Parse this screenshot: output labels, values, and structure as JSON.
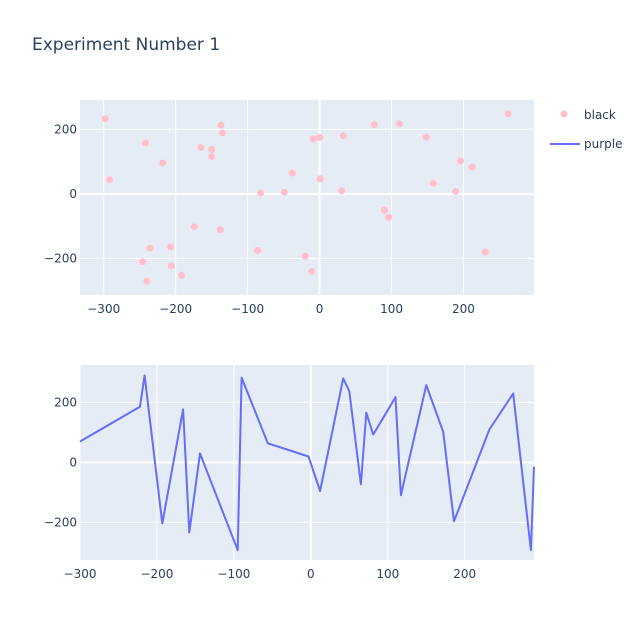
{
  "chart_data": {
    "title": "Experiment Number 1",
    "legend": {
      "placement": "top-right",
      "entries": [
        {
          "name": "black",
          "symbol": "marker",
          "color": "#ffc0cb"
        },
        {
          "name": "purple",
          "symbol": "line",
          "color": "#636efa"
        }
      ]
    },
    "colors": {
      "plot_bg": "#e5ecf6",
      "grid": "#ffffff",
      "text": "#2a3f5f"
    },
    "charts": [
      {
        "type": "scatter",
        "series_name": "black",
        "color": "#ffc0cb",
        "xlim": [
          -333,
          298
        ],
        "ylim": [
          -313,
          291
        ],
        "xticks": [
          -300,
          -200,
          -100,
          0,
          100,
          200
        ],
        "yticks": [
          -200,
          0,
          200
        ],
        "points": [
          [
            -298,
            233
          ],
          [
            -292,
            44
          ],
          [
            -242,
            158
          ],
          [
            -218,
            96
          ],
          [
            -240,
            -270
          ],
          [
            -246,
            -210
          ],
          [
            -236,
            -168
          ],
          [
            -207,
            -164
          ],
          [
            -206,
            -223
          ],
          [
            -192,
            -252
          ],
          [
            -174,
            -102
          ],
          [
            -165,
            144
          ],
          [
            -150,
            138
          ],
          [
            -150,
            116
          ],
          [
            -137,
            213
          ],
          [
            -135,
            189
          ],
          [
            -138,
            -111
          ],
          [
            -86,
            -175
          ],
          [
            -82,
            3
          ],
          [
            -49,
            5
          ],
          [
            -38,
            65
          ],
          [
            -20,
            -193
          ],
          [
            -11,
            -240
          ],
          [
            -9,
            171
          ],
          [
            0,
            175
          ],
          [
            1,
            47
          ],
          [
            31,
            10
          ],
          [
            33,
            180
          ],
          [
            76,
            215
          ],
          [
            90,
            -50
          ],
          [
            96,
            -72
          ],
          [
            111,
            217
          ],
          [
            148,
            176
          ],
          [
            158,
            33
          ],
          [
            189,
            8
          ],
          [
            196,
            102
          ],
          [
            212,
            83
          ],
          [
            230,
            -180
          ],
          [
            262,
            248
          ]
        ]
      },
      {
        "type": "line",
        "series_name": "purple",
        "color": "#636efa",
        "xlim": [
          -300,
          290
        ],
        "ylim": [
          -325,
          325
        ],
        "xticks": [
          -300,
          -200,
          -100,
          0,
          100,
          200
        ],
        "yticks": [
          -200,
          0,
          200
        ],
        "points": [
          [
            -300,
            70
          ],
          [
            -222,
            186
          ],
          [
            -216,
            290
          ],
          [
            -193,
            -203
          ],
          [
            -166,
            177
          ],
          [
            -158,
            -233
          ],
          [
            -144,
            30
          ],
          [
            -95,
            -292
          ],
          [
            -90,
            283
          ],
          [
            -56,
            64
          ],
          [
            -3,
            20
          ],
          [
            12,
            -95
          ],
          [
            42,
            280
          ],
          [
            50,
            238
          ],
          [
            65,
            -73
          ],
          [
            72,
            166
          ],
          [
            81,
            93
          ],
          [
            110,
            218
          ],
          [
            117,
            -109
          ],
          [
            150,
            258
          ],
          [
            172,
            102
          ],
          [
            186,
            -196
          ],
          [
            232,
            110
          ],
          [
            263,
            230
          ],
          [
            286,
            -292
          ],
          [
            290,
            -14
          ]
        ]
      }
    ]
  }
}
